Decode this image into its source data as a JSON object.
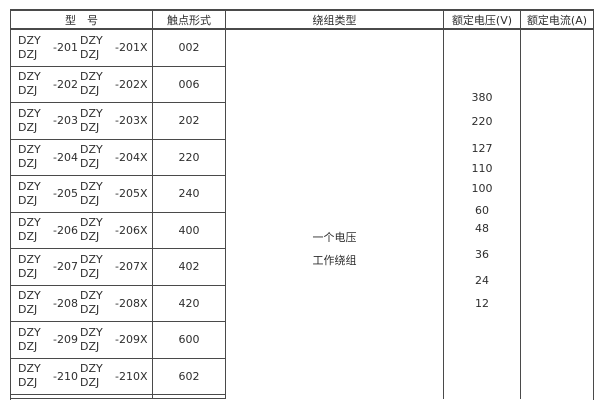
{
  "table": {
    "headers": {
      "model": "型　号",
      "contact": "触点形式",
      "winding": "绕组类型",
      "voltage": "额定电压(V)",
      "current": "额定电流(A)"
    },
    "winding_type": {
      "line1": "一个电压",
      "line2": "工作绕组"
    },
    "voltages": [
      "380",
      "220",
      "127",
      "110",
      "100",
      "60",
      "48",
      "36",
      "24",
      "12"
    ],
    "rows": [
      {
        "left_top": "DZY",
        "left_bottom": "DZJ",
        "left_suffix": "-201",
        "right_top": "DZY",
        "right_bottom": "DZJ",
        "right_suffix": "-201X",
        "contact": "002"
      },
      {
        "left_top": "DZY",
        "left_bottom": "DZJ",
        "left_suffix": "-202",
        "right_top": "DZY",
        "right_bottom": "DZJ",
        "right_suffix": "-202X",
        "contact": "006"
      },
      {
        "left_top": "DZY",
        "left_bottom": "DZJ",
        "left_suffix": "-203",
        "right_top": "DZY",
        "right_bottom": "DZJ",
        "right_suffix": "-203X",
        "contact": "202"
      },
      {
        "left_top": "DZY",
        "left_bottom": "DZJ",
        "left_suffix": "-204",
        "right_top": "DZY",
        "right_bottom": "DZJ",
        "right_suffix": "-204X",
        "contact": "220"
      },
      {
        "left_top": "DZY",
        "left_bottom": "DZJ",
        "left_suffix": "-205",
        "right_top": "DZY",
        "right_bottom": "DZJ",
        "right_suffix": "-205X",
        "contact": "240"
      },
      {
        "left_top": "DZY",
        "left_bottom": "DZJ",
        "left_suffix": "-206",
        "right_top": "DZY",
        "right_bottom": "DZJ",
        "right_suffix": "-206X",
        "contact": "400"
      },
      {
        "left_top": "DZY",
        "left_bottom": "DZJ",
        "left_suffix": "-207",
        "right_top": "DZY",
        "right_bottom": "DZJ",
        "right_suffix": "-207X",
        "contact": "402"
      },
      {
        "left_top": "DZY",
        "left_bottom": "DZJ",
        "left_suffix": "-208",
        "right_top": "DZY",
        "right_bottom": "DZJ",
        "right_suffix": "-208X",
        "contact": "420"
      },
      {
        "left_top": "DZY",
        "left_bottom": "DZJ",
        "left_suffix": "-209",
        "right_top": "DZY",
        "right_bottom": "DZJ",
        "right_suffix": "-209X",
        "contact": "600"
      },
      {
        "left_top": "DZY",
        "left_bottom": "DZJ",
        "left_suffix": "-210",
        "right_top": "DZY",
        "right_bottom": "DZJ",
        "right_suffix": "-210X",
        "contact": "602"
      }
    ]
  },
  "colors": {
    "border": "#4a4a4a",
    "text": "#2e2e2e",
    "background": "#ffffff"
  }
}
